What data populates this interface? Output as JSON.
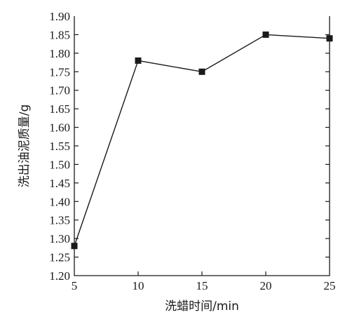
{
  "chart_data": {
    "type": "line",
    "xlabel": "洗蜡时间/min",
    "ylabel": "洗出油泥质量/g",
    "x_ticks": [
      "5",
      "10",
      "15",
      "20",
      "25"
    ],
    "y_ticks": [
      "1.20",
      "1.25",
      "1.30",
      "1.35",
      "1.40",
      "1.45",
      "1.50",
      "1.55",
      "1.60",
      "1.65",
      "1.70",
      "1.75",
      "1.80",
      "1.85",
      "1.90"
    ],
    "xlim": [
      5,
      25
    ],
    "ylim": [
      1.2,
      1.9
    ],
    "grid": false,
    "legend": "none",
    "series": [
      {
        "marker": "square",
        "color": "#1a1a1a",
        "x": [
          5,
          10,
          15,
          20,
          25
        ],
        "y": [
          1.28,
          1.78,
          1.75,
          1.85,
          1.84
        ]
      }
    ]
  }
}
